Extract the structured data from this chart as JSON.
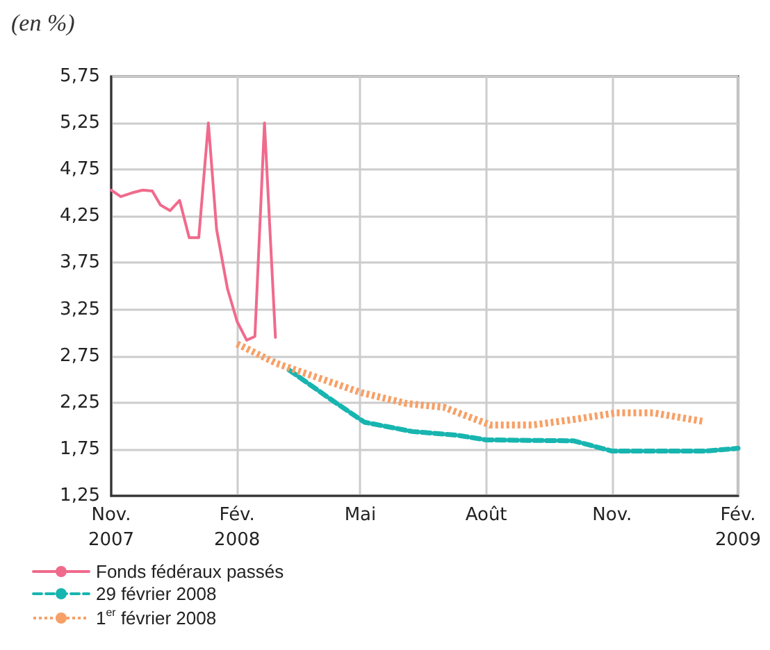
{
  "chart_data": {
    "type": "line",
    "ylabel": "(en %)",
    "xlim": [
      "2007-11-01",
      "2009-02-01"
    ],
    "xticks": [
      {
        "value": "2007-11-01",
        "label": "Nov.\n2007"
      },
      {
        "value": "2008-02-01",
        "label": "Fév.\n2008"
      },
      {
        "value": "2008-05-01",
        "label": "Mai"
      },
      {
        "value": "2008-08-01",
        "label": "Août"
      },
      {
        "value": "2008-11-01",
        "label": "Nov."
      },
      {
        "value": "2009-02-01",
        "label": "Fév.\n2009"
      }
    ],
    "ylim": [
      1.25,
      5.75
    ],
    "yticks": [
      {
        "value": 1.25,
        "label": "1,25"
      },
      {
        "value": 1.75,
        "label": "1,75"
      },
      {
        "value": 2.25,
        "label": "2,25"
      },
      {
        "value": 2.75,
        "label": "2,75"
      },
      {
        "value": 3.25,
        "label": "3,25"
      },
      {
        "value": 3.75,
        "label": "3,75"
      },
      {
        "value": 4.25,
        "label": "4,25"
      },
      {
        "value": 4.75,
        "label": "4,75"
      },
      {
        "value": 5.25,
        "label": "5,25"
      },
      {
        "value": 5.75,
        "label": "5,75"
      }
    ],
    "grid": true,
    "legend": "bottom left",
    "marker": "none",
    "series": [
      {
        "name": "Fonds fédéraux passés",
        "color": "#f06a8c",
        "line_style": "solid",
        "x": [
          "2007-11-01",
          "2007-11-08",
          "2007-11-16",
          "2007-11-24",
          "2007-12-01",
          "2007-12-07",
          "2007-12-14",
          "2007-12-21",
          "2007-12-28",
          "2008-01-04",
          "2008-01-11",
          "2008-01-17",
          "2008-01-25",
          "2008-02-01",
          "2008-02-08",
          "2008-02-14",
          "2008-02-21",
          "2008-02-29"
        ],
        "values": [
          4.53,
          4.46,
          4.5,
          4.53,
          4.52,
          4.37,
          4.31,
          4.42,
          4.02,
          4.02,
          5.25,
          4.11,
          3.47,
          3.12,
          2.92,
          2.96,
          5.25,
          2.95
        ]
      },
      {
        "name": "29 février 2008",
        "color": "#18b5b0",
        "line_style": "dashed",
        "x": [
          "2008-03-10",
          "2008-04-08",
          "2008-05-04",
          "2008-06-08",
          "2008-07-11",
          "2008-08-01",
          "2008-10-04",
          "2008-11-01",
          "2009-01-08",
          "2009-02-01"
        ],
        "values": [
          2.6,
          2.3,
          2.04,
          1.94,
          1.9,
          1.85,
          1.84,
          1.73,
          1.73,
          1.76
        ]
      },
      {
        "name": "1$^{er}$ février 2008",
        "color": "#f7a066",
        "line_style": "dotted",
        "x": [
          "2008-02-01",
          "2008-03-01",
          "2008-05-01",
          "2008-06-04",
          "2008-07-01",
          "2008-08-04",
          "2008-09-04",
          "2008-10-04",
          "2008-11-04",
          "2008-12-01",
          "2009-01-06"
        ],
        "values": [
          2.88,
          2.67,
          2.36,
          2.24,
          2.2,
          2.01,
          2.01,
          2.07,
          2.14,
          2.14,
          2.05
        ]
      }
    ]
  }
}
